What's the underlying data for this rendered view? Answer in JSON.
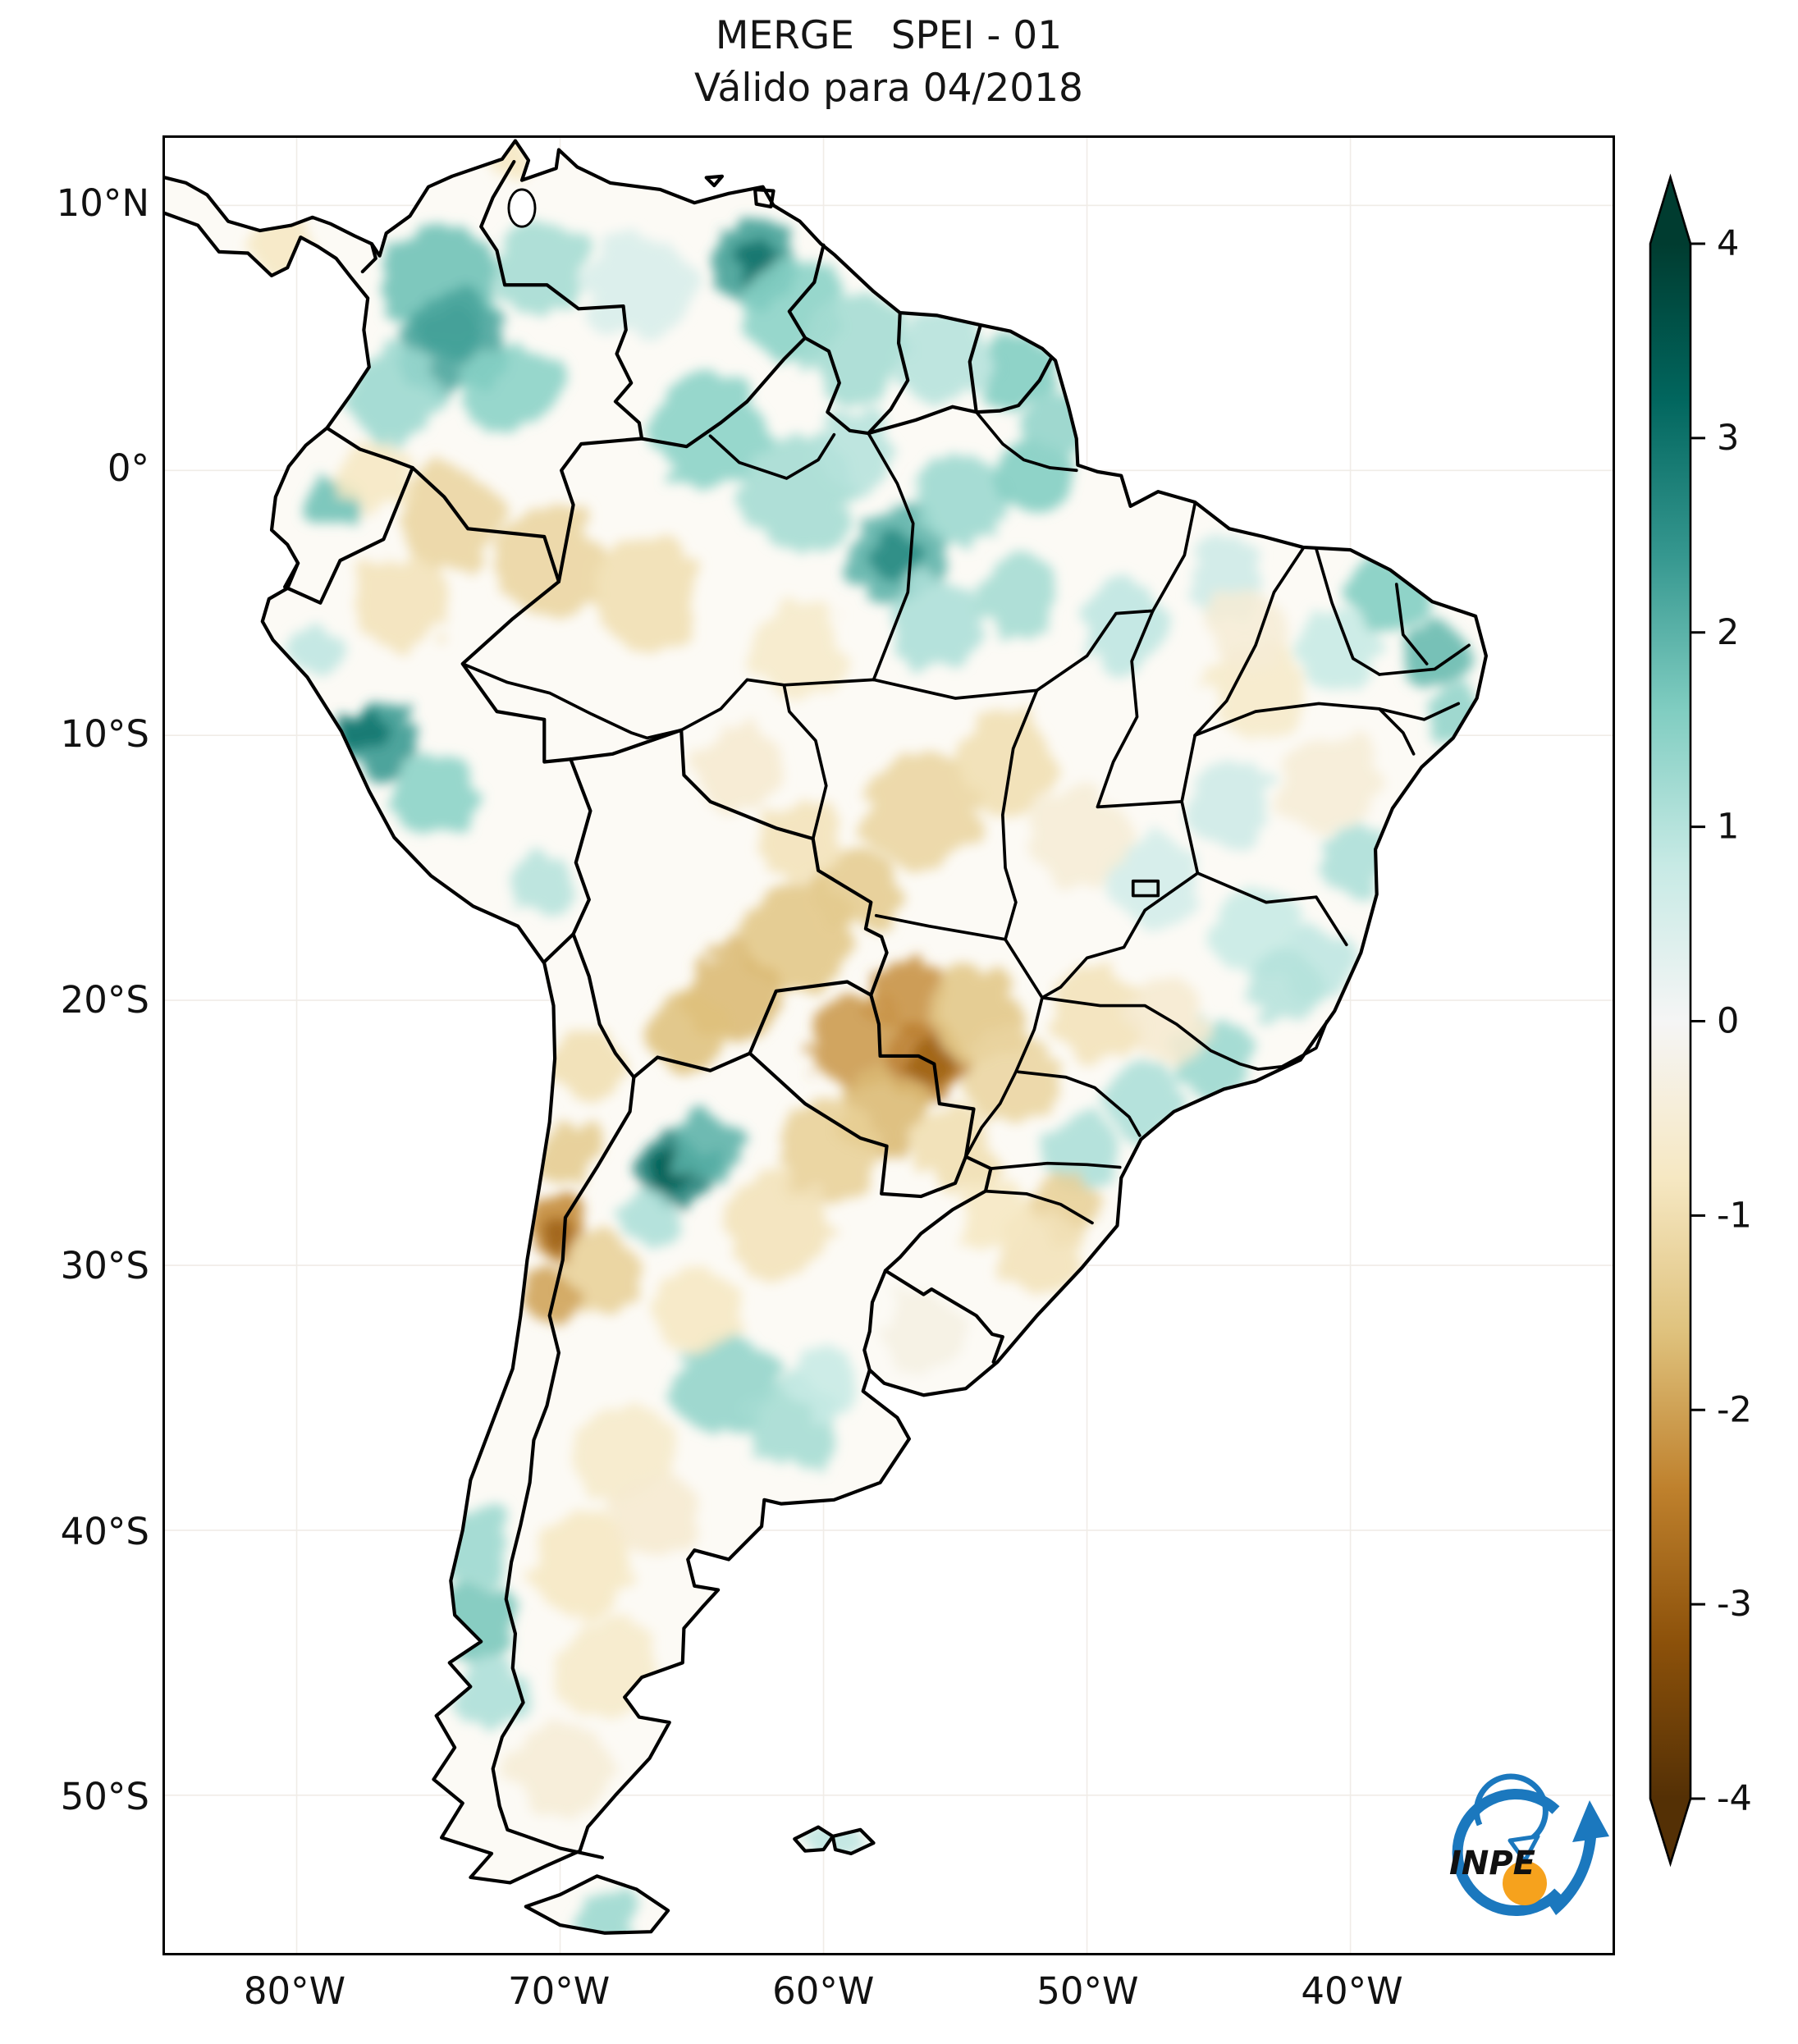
{
  "title": {
    "line1": "MERGE   SPEI - 01",
    "line2": "Válido para 04/2018"
  },
  "logo": {
    "text": "INPE",
    "blue": "#1b78be",
    "orange": "#f6a21d"
  },
  "colors": {
    "border": "#000000",
    "land_base": "#fcfaf5",
    "grid": "#f0ece7",
    "ocean": "#ffffff"
  },
  "chart_data": {
    "type": "heatmap",
    "title": "MERGE   SPEI - 01",
    "subtitle": "Válido para 04/2018",
    "variable": "SPEI-01 drought index over South America",
    "xlabel": "",
    "ylabel": "",
    "lon_range": [
      -85,
      -30.05
    ],
    "lat_range": [
      -55.95,
      12.55
    ],
    "grid": "faint",
    "x_ticks": [
      {
        "label": "80°W",
        "lon": -80
      },
      {
        "label": "70°W",
        "lon": -70
      },
      {
        "label": "60°W",
        "lon": -60
      },
      {
        "label": "50°W",
        "lon": -50
      },
      {
        "label": "40°W",
        "lon": -40
      }
    ],
    "y_ticks": [
      {
        "label": "10°N",
        "lat": 10
      },
      {
        "label": "0°",
        "lat": 0
      },
      {
        "label": "10°S",
        "lat": -10
      },
      {
        "label": "20°S",
        "lat": -20
      },
      {
        "label": "30°S",
        "lat": -30
      },
      {
        "label": "40°S",
        "lat": -40
      },
      {
        "label": "50°S",
        "lat": -50
      }
    ],
    "colorbar": {
      "position": "right",
      "range": [
        -4,
        4
      ],
      "extend": "both",
      "colormap": "BrBG",
      "ticks": [
        4,
        3,
        2,
        1,
        0,
        -1,
        -2,
        -3,
        -4
      ],
      "stops": [
        {
          "v": -4.0,
          "c": "#543005"
        },
        {
          "v": -3.2,
          "c": "#8c510a"
        },
        {
          "v": -2.4,
          "c": "#bf812d"
        },
        {
          "v": -1.6,
          "c": "#dfc27d"
        },
        {
          "v": -0.8,
          "c": "#f6e8c3"
        },
        {
          "v": 0.0,
          "c": "#f5f5f5"
        },
        {
          "v": 0.8,
          "c": "#c7eae5"
        },
        {
          "v": 1.6,
          "c": "#80cdc1"
        },
        {
          "v": 2.4,
          "c": "#35978f"
        },
        {
          "v": 3.2,
          "c": "#01665e"
        },
        {
          "v": 4.0,
          "c": "#003c30"
        }
      ]
    },
    "field_blobs": [
      [
        -74.6,
        7,
        1.8,
        2.2
      ],
      [
        -74.3,
        5.2,
        2.6,
        1
      ],
      [
        -74,
        4.8,
        2.2,
        2
      ],
      [
        -76.2,
        2.8,
        1.3,
        1.8
      ],
      [
        -72,
        3.2,
        1.5,
        1.8
      ],
      [
        -70.8,
        7.6,
        1.2,
        1.8
      ],
      [
        -67,
        7,
        0.5,
        2
      ],
      [
        -62.6,
        7.8,
        2.3,
        1.7
      ],
      [
        -62.4,
        7.9,
        3,
        0.9
      ],
      [
        -61.2,
        6,
        1.5,
        2
      ],
      [
        -58.8,
        4.6,
        1.2,
        2
      ],
      [
        -55.4,
        4.3,
        1,
        1.8
      ],
      [
        -52.6,
        3.9,
        1.6,
        1.4
      ],
      [
        -64.4,
        1.6,
        1.5,
        2.2
      ],
      [
        -61,
        -0.8,
        1.2,
        2.2
      ],
      [
        -58.8,
        0.8,
        1,
        1.6
      ],
      [
        -57.2,
        -3.2,
        2,
        1.9
      ],
      [
        -57.3,
        -3.1,
        2.6,
        0.9
      ],
      [
        -54.8,
        -1.2,
        1.3,
        1.8
      ],
      [
        -52,
        -0.2,
        1.6,
        1.5
      ],
      [
        -51.2,
        1.8,
        1.4,
        1.2
      ],
      [
        -55.8,
        -5.8,
        1.1,
        1.8
      ],
      [
        -52.6,
        -4.8,
        1.2,
        1.6
      ],
      [
        -48.6,
        -5.8,
        0.9,
        1.7
      ],
      [
        -44.8,
        -4.2,
        0.7,
        1.5
      ],
      [
        -38.6,
        -4.6,
        1.6,
        1.5
      ],
      [
        -36.6,
        -6.8,
        1.9,
        1.3
      ],
      [
        -35.9,
        -9.2,
        1.4,
        1.1
      ],
      [
        -40.5,
        -6.8,
        0.8,
        1.5
      ],
      [
        -44.6,
        -12.6,
        0.7,
        1.6
      ],
      [
        -39.6,
        -14.8,
        1.1,
        1.3
      ],
      [
        -41.2,
        -18.6,
        0.9,
        1.4
      ],
      [
        -43.5,
        -17.5,
        0.8,
        1.6
      ],
      [
        -42.5,
        -19.5,
        1,
        1.4
      ],
      [
        -47.5,
        -15.5,
        0.6,
        1.8
      ],
      [
        -45.2,
        -22.2,
        1.3,
        1.5
      ],
      [
        -47.8,
        -23.8,
        1.1,
        1.4
      ],
      [
        -50.2,
        -25.8,
        1.1,
        1.5
      ],
      [
        -65.6,
        -26.4,
        2.8,
        1.5
      ],
      [
        -65.5,
        -26.3,
        3.4,
        0.8
      ],
      [
        -64.5,
        -25.6,
        2,
        1.3
      ],
      [
        -66.6,
        -28.2,
        1.1,
        1.1
      ],
      [
        -76.8,
        -10.2,
        2.4,
        1.4
      ],
      [
        -77.5,
        -9.8,
        2.9,
        0.8
      ],
      [
        -74.8,
        -12.2,
        1.5,
        1.5
      ],
      [
        -70.8,
        -15.6,
        1,
        1.1
      ],
      [
        -78.6,
        -1.2,
        1.8,
        1
      ],
      [
        -79.2,
        -6.8,
        0.9,
        1
      ],
      [
        -73.4,
        -40.6,
        1.3,
        1.5
      ],
      [
        -73.2,
        -43.6,
        1.7,
        1.5
      ],
      [
        -72.6,
        -46.2,
        1.1,
        1.3
      ],
      [
        -63.8,
        -34.4,
        1.4,
        1.9
      ],
      [
        -61.2,
        -36,
        1.2,
        1.7
      ],
      [
        -60,
        -34.4,
        0.8,
        1.4
      ],
      [
        -68.2,
        -54.6,
        1.3,
        1.1
      ],
      [
        -59.6,
        -51.7,
        0.9,
        0.9
      ],
      [
        -71.9,
        11.9,
        -0.8,
        0.9
      ],
      [
        -80.6,
        8.4,
        -0.8,
        1.1
      ],
      [
        -74.2,
        -1.8,
        -1.2,
        2
      ],
      [
        -77,
        -0.2,
        -0.8,
        1.3
      ],
      [
        -76,
        -5,
        -0.9,
        1.8
      ],
      [
        -70.4,
        -3.4,
        -1.2,
        2
      ],
      [
        -66.8,
        -4.6,
        -1,
        2.2
      ],
      [
        -61,
        -6.8,
        -0.7,
        1.8
      ],
      [
        -63.2,
        -11.2,
        -0.6,
        1.7
      ],
      [
        -56.2,
        -12.8,
        -1.2,
        2.2
      ],
      [
        -53,
        -11,
        -1,
        1.9
      ],
      [
        -50.4,
        -13.8,
        -0.5,
        1.9
      ],
      [
        -43.6,
        -8.2,
        -0.7,
        1.8
      ],
      [
        -40.8,
        -11.8,
        -0.5,
        1.9
      ],
      [
        -44,
        -6,
        -0.5,
        1.5
      ],
      [
        -61,
        -17.6,
        -1.5,
        2.1
      ],
      [
        -58.8,
        -15.8,
        -1.4,
        1.6
      ],
      [
        -60.8,
        -14,
        -0.9,
        1.5
      ],
      [
        -63.4,
        -19.8,
        -1.7,
        1.8
      ],
      [
        -65.2,
        -21.2,
        -1.6,
        1.4
      ],
      [
        -58.8,
        -21.6,
        -2.1,
        1.7
      ],
      [
        -56.8,
        -19.9,
        -2.2,
        1.5
      ],
      [
        -56,
        -22.3,
        -2.5,
        1.5
      ],
      [
        -55.8,
        -22.3,
        -2.9,
        0.8
      ],
      [
        -57.6,
        -24.2,
        -1.7,
        1.7
      ],
      [
        -54.2,
        -20.6,
        -1.5,
        1.8
      ],
      [
        -52.8,
        -22.8,
        -1.2,
        1.8
      ],
      [
        -55,
        -25.6,
        -1,
        1.6
      ],
      [
        -49.6,
        -20.4,
        -0.9,
        1.8
      ],
      [
        -47,
        -20.8,
        -0.6,
        1.5
      ],
      [
        -59.8,
        -25.8,
        -1.3,
        1.9
      ],
      [
        -61.8,
        -28.6,
        -0.9,
        2
      ],
      [
        -64.8,
        -31.6,
        -0.8,
        1.6
      ],
      [
        -68.6,
        -30.2,
        -1.3,
        1.5
      ],
      [
        -70.2,
        -28.6,
        -2.3,
        1.1
      ],
      [
        -70.2,
        -28.8,
        -2.9,
        0.6
      ],
      [
        -70.4,
        -31.2,
        -2,
        1
      ],
      [
        -69.6,
        -25.8,
        -1.4,
        1.2
      ],
      [
        -69,
        -22.5,
        -1,
        1.4
      ],
      [
        -67.6,
        -37,
        -0.7,
        1.9
      ],
      [
        -69.2,
        -41.2,
        -0.8,
        2
      ],
      [
        -68.2,
        -45.2,
        -0.7,
        2
      ],
      [
        -70,
        -49,
        -0.5,
        1.8
      ],
      [
        -66.4,
        -39.4,
        -0.6,
        1.6
      ],
      [
        -50.8,
        -27.8,
        -1.3,
        1.3
      ],
      [
        -51.8,
        -29.4,
        -0.9,
        1.6
      ],
      [
        -53.4,
        -28,
        -0.8,
        1.4
      ],
      [
        -56.2,
        -32.4,
        -0.3,
        1.6
      ]
    ]
  }
}
